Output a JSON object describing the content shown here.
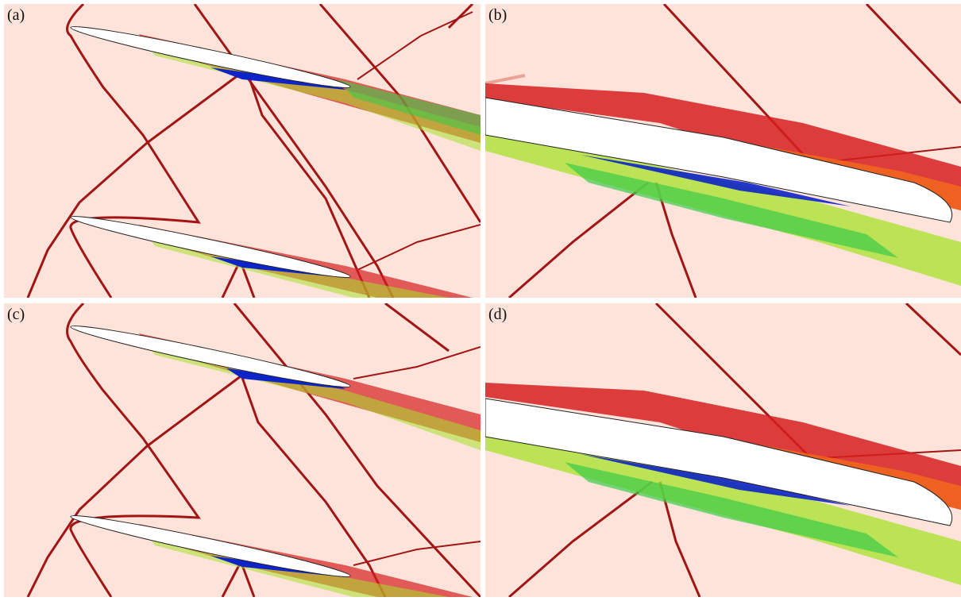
{
  "panels": [
    {
      "id": "a",
      "label": "(a)"
    },
    {
      "id": "b",
      "label": "(b)"
    },
    {
      "id": "c",
      "label": "(c)"
    },
    {
      "id": "d",
      "label": "(d)"
    }
  ],
  "colors": {
    "background": "#fde3da",
    "shock": "#a31515",
    "shock_soft": "#e9a496",
    "airfoil": "#ffffff",
    "vortex_palette": [
      "#0c24c8",
      "#1e7cff",
      "#14c8d2",
      "#3ccc4a",
      "#a6e12a",
      "#f2e51e",
      "#ffb01f",
      "#f26a1b",
      "#d61f1f"
    ]
  }
}
